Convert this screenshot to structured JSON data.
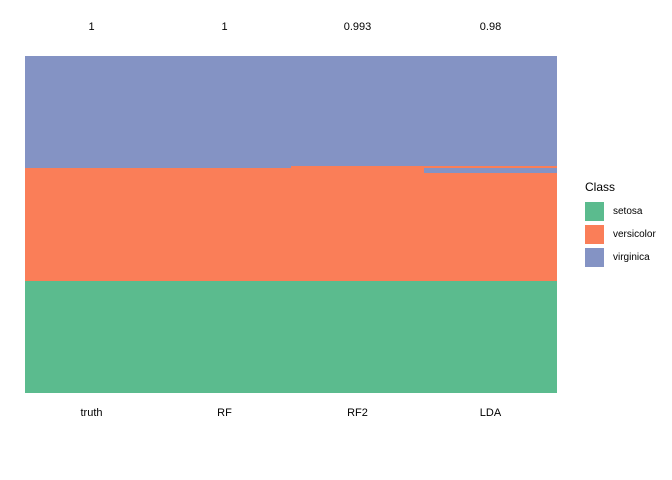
{
  "figure": {
    "background": "#ffffff"
  },
  "legend": {
    "title": "Class",
    "items": [
      {
        "label": "setosa",
        "color": "#5bbb8e"
      },
      {
        "label": "versicolor",
        "color": "#fa7e58"
      },
      {
        "label": "virginica",
        "color": "#8493c4"
      }
    ]
  },
  "chart_data": {
    "type": "heatmap",
    "description": "Per-observation class membership stripes for 150 iris observations; ground truth vs. predictions of three classifiers. Each column is a vertical stack of 150 equal-height rows colored by class (top: virginica, middle: versicolor, bottom: setosa). Number above each column is its accuracy.",
    "n_observations": 150,
    "classes": [
      "setosa",
      "versicolor",
      "virginica"
    ],
    "class_colors": {
      "setosa": "#5bbb8e",
      "versicolor": "#fa7e58",
      "virginica": "#8493c4"
    },
    "legend_position": "right",
    "grid": false,
    "columns": [
      {
        "label": "truth",
        "accuracy": "1",
        "segments": [
          {
            "class": "virginica",
            "count": 50
          },
          {
            "class": "versicolor",
            "count": 50
          },
          {
            "class": "setosa",
            "count": 50
          }
        ]
      },
      {
        "label": "RF",
        "accuracy": "1",
        "segments": [
          {
            "class": "virginica",
            "count": 50
          },
          {
            "class": "versicolor",
            "count": 50
          },
          {
            "class": "setosa",
            "count": 50
          }
        ]
      },
      {
        "label": "RF2",
        "accuracy": "0.993",
        "segments": [
          {
            "class": "virginica",
            "count": 49
          },
          {
            "class": "versicolor",
            "count": 51
          },
          {
            "class": "setosa",
            "count": 50
          }
        ]
      },
      {
        "label": "LDA",
        "accuracy": "0.98",
        "segments": [
          {
            "class": "virginica",
            "count": 49
          },
          {
            "class": "versicolor",
            "count": 1
          },
          {
            "class": "virginica",
            "count": 2
          },
          {
            "class": "versicolor",
            "count": 48
          },
          {
            "class": "setosa",
            "count": 50
          }
        ]
      }
    ]
  }
}
